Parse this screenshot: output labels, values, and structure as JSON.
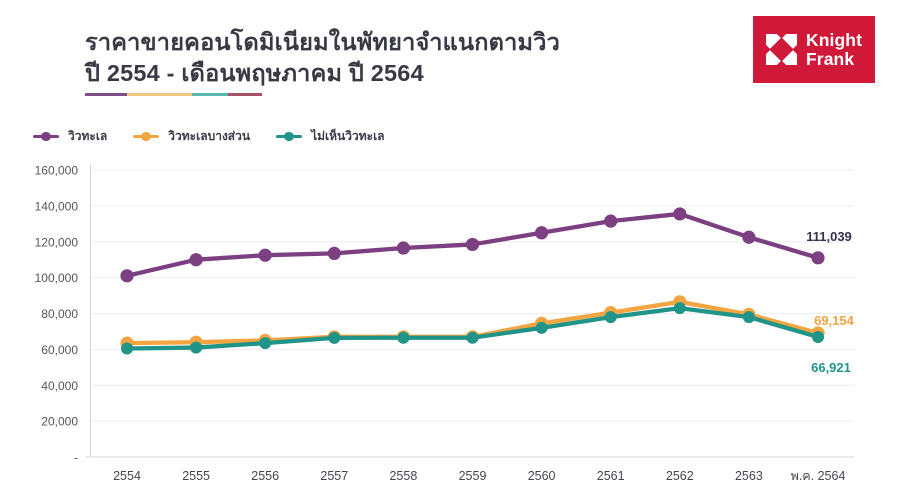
{
  "header": {
    "title_line1": "ราคาขายคอนโดมิเนียมในพัทยาจำแนกตามวิว",
    "title_line2": "ปี 2554 - เดือนพฤษภาคม ปี 2564",
    "underline_colors": [
      "#7B4E87",
      "#EDC87E",
      "#56BBAA",
      "#A85266"
    ]
  },
  "logo": {
    "line1": "Knight",
    "line2": "Frank",
    "background_color": "#D01939",
    "icon": "knight-frank-pinwheel-icon"
  },
  "chart_data": {
    "type": "line",
    "title": "ราคาขายคอนโดมิเนียมในพัทยาจำแนกตามวิว ปี 2554 - เดือนพฤษภาคม ปี 2564",
    "categories": [
      "2554",
      "2555",
      "2556",
      "2557",
      "2558",
      "2559",
      "2560",
      "2561",
      "2562",
      "2563",
      "พ.ค. 2564"
    ],
    "series": [
      {
        "name": "วิวทะเล",
        "color": "#7C3F82",
        "label_color": "#33334D",
        "values": [
          101000,
          110000,
          112500,
          113500,
          116500,
          118500,
          125000,
          131500,
          135500,
          122500,
          111039
        ],
        "end_label": "111,039"
      },
      {
        "name": "วิวทะเลบางส่วน",
        "color": "#F2A540",
        "label_color": "#F2A540",
        "values": [
          63500,
          64000,
          65000,
          67000,
          67000,
          67000,
          74500,
          80500,
          86500,
          79500,
          69154
        ],
        "end_label": "69,154"
      },
      {
        "name": "ไม่เห็นวิวทะเล",
        "color": "#219489",
        "label_color": "#219489",
        "values": [
          60500,
          61000,
          63500,
          66400,
          66500,
          66500,
          72000,
          78000,
          83000,
          78000,
          66921
        ],
        "end_label": "66,921"
      }
    ],
    "ylim": [
      0,
      160000
    ],
    "ytick_values": [
      160000,
      140000,
      120000,
      100000,
      80000,
      60000,
      40000,
      20000,
      0
    ],
    "ytick_labels": [
      "160,000",
      "140,000",
      "120,000",
      "100,000",
      "80,000",
      "60,000",
      "40,000",
      "20,000",
      "-"
    ],
    "grid": true,
    "legend_position": "top-left"
  }
}
